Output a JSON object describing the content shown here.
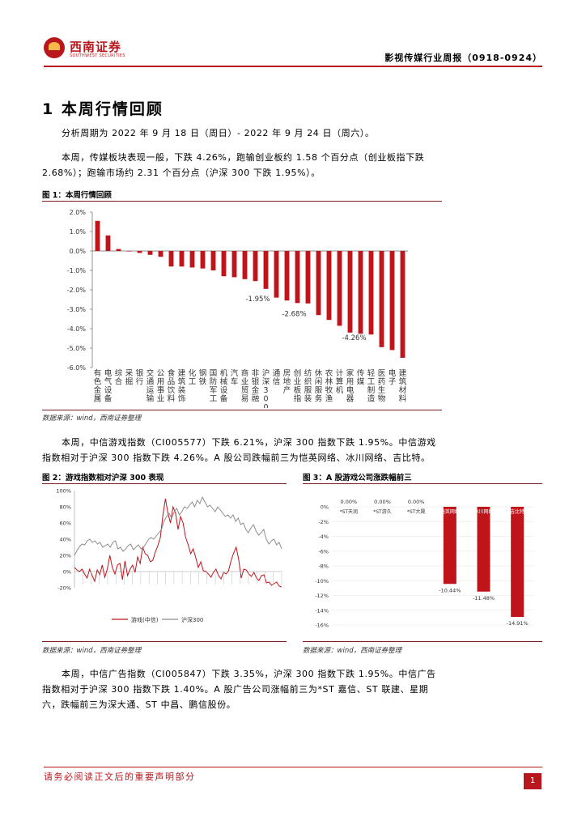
{
  "header": {
    "logo_text": "西南证券",
    "logo_sub": "SOUTHWEST SECURITIES",
    "report_title": "影视传媒行业周报（0918-0924）"
  },
  "section": {
    "title": "1  本周行情回顾"
  },
  "paragraphs": {
    "p1": "分析周期为 2022 年 9 月 18 日（周日）- 2022 年 9 月 24 日（周六）。",
    "p2a": "本周，传媒板块表现一般，下跌 4.26%，跑输创业板约 1.58 个百分点（创业板指下跌",
    "p2b": "2.68%）；跑输市场约 2.31 个百分点（沪深 300 下跌 1.95%）。",
    "p3a": "本周，中信游戏指数（CI005577）下跌 6.21%，沪深 300 指数下跌 1.95%。中信游戏",
    "p3b": "指数相对于沪深 300 指数下跌 4.26%。A 股公司跌幅前三为恺英网络、冰川网络、吉比特。",
    "p4a": "本周，中信广告指数（CI005847）下跌 3.35%，沪深 300 指数下跌 1.95%。中信广告",
    "p4b": "指数相对于沪深 300 指数下跌 1.40%。A 股广告公司涨幅前三为*ST 嘉信、ST 联建、星期",
    "p4c": "六，跌幅前三为深大通、ST 中昌、鹏信股份。"
  },
  "figures": {
    "fig1_title": "图 1：本周行情回顾",
    "fig2_title": "图 2：游戏指数相对沪深 300 表现",
    "fig3_title": "图 3：A 股游戏公司涨跌幅前三",
    "source_a": "数据来源：wind，西南证券整理",
    "source_b": "数据来源：wind，西南证券整理",
    "source_c": "数据来源：wind，西南证券整理"
  },
  "chart_data": [
    {
      "type": "bar",
      "title": "",
      "ylim": [
        -6,
        2
      ],
      "yticks": [
        "2.0%",
        "1.0%",
        "0.0%",
        "-1.0%",
        "-2.0%",
        "-3.0%",
        "-4.0%",
        "-5.0%",
        "-6.0%"
      ],
      "categories": [
        "有色金属",
        "电气设备",
        "综合",
        "采掘",
        "银行",
        "交通运输",
        "公用事业",
        "食品饮料",
        "建筑装饰",
        "化工",
        "钢铁",
        "国防军工",
        "机械设备",
        "汽车",
        "商业贸易",
        "非银金融",
        "沪深300",
        "通信",
        "房地产",
        "创业板指",
        "纺织服装",
        "休闲服务",
        "农林牧渔",
        "计算机",
        "家用电器",
        "传媒",
        "轻工制造",
        "医药生物",
        "电子",
        "建筑材料"
      ],
      "values": [
        1.55,
        0.8,
        0.1,
        0.0,
        -0.1,
        -0.2,
        -0.3,
        -0.8,
        -0.8,
        -0.85,
        -0.9,
        -1.0,
        -1.3,
        -1.35,
        -1.45,
        -1.55,
        -1.95,
        -2.4,
        -2.55,
        -2.68,
        -2.7,
        -3.3,
        -3.55,
        -3.85,
        -4.2,
        -4.26,
        -4.3,
        -4.95,
        -5.1,
        -5.5
      ],
      "annotations": [
        "-1.95%",
        "-2.68%",
        "-4.26%"
      ],
      "color": "#c0141b"
    },
    {
      "type": "line",
      "title": "",
      "ylim": [
        -20,
        100
      ],
      "yticks": [
        "100%",
        "80%",
        "60%",
        "40%",
        "20%",
        "0%",
        "-20%"
      ],
      "series": [
        {
          "name": "游戏(中信)",
          "color": "#c0141b",
          "values": [
            5,
            2,
            0,
            3,
            -3,
            -8,
            3,
            -5,
            -12,
            2,
            -4,
            8,
            -7,
            3,
            20,
            5,
            -3,
            8,
            10,
            -10,
            13,
            -5,
            3,
            8,
            -1,
            18,
            10,
            30,
            22,
            20,
            12,
            14,
            24,
            32,
            42,
            70,
            90,
            72,
            60,
            80,
            72,
            52,
            68,
            60,
            42,
            33,
            22,
            28,
            17,
            5,
            12,
            1,
            0,
            -3,
            -7,
            -1,
            3,
            -5,
            -9,
            -1,
            -3,
            1,
            14,
            23,
            30,
            15,
            -8,
            3,
            2,
            -3,
            -6,
            -1,
            -8,
            -11,
            -5,
            -4,
            -14,
            -13,
            -17,
            -15,
            -13,
            -18,
            -19
          ]
        },
        {
          "name": "沪深300",
          "color": "#8c8c8c",
          "values": [
            20,
            26,
            31,
            34,
            33,
            38,
            40,
            36,
            38,
            34,
            36,
            30,
            32,
            34,
            30,
            36,
            38,
            28,
            30,
            25,
            28,
            32,
            34,
            27,
            30,
            33,
            28,
            30,
            35,
            40,
            42,
            40,
            44,
            48,
            52,
            62,
            68,
            72,
            66,
            74,
            78,
            70,
            74,
            80,
            78,
            82,
            86,
            80,
            88,
            84,
            92,
            86,
            80,
            82,
            78,
            74,
            80,
            76,
            72,
            68,
            70,
            66,
            70,
            62,
            66,
            58,
            60,
            52,
            48,
            54,
            58,
            50,
            45,
            48,
            52,
            40,
            34,
            38,
            40,
            33,
            36,
            28
          ]
        }
      ]
    },
    {
      "type": "bar",
      "title": "",
      "ylim": [
        -16,
        0
      ],
      "yticks": [
        "0%",
        "-2%",
        "-4%",
        "-6%",
        "-8%",
        "-10%",
        "-12%",
        "-14%",
        "-16%"
      ],
      "categories": [
        "*ST天润",
        "*ST游久",
        "*ST大晟",
        "恺英网络",
        "冰川网络",
        "吉比特"
      ],
      "values": [
        0.0,
        0.0,
        0.0,
        -10.44,
        -11.48,
        -14.91
      ],
      "value_labels": [
        "0.00%",
        "0.00%",
        "0.00%",
        "-10.44%",
        "-11.48%",
        "-14.91%"
      ],
      "color": "#c0141b"
    }
  ],
  "footer": {
    "disclaimer": "请务必阅读正文后的重要声明部分",
    "page_number": "1"
  }
}
